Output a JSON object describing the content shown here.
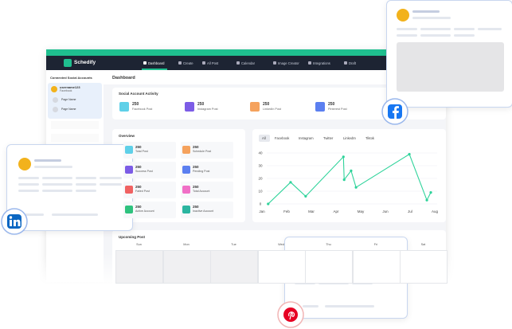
{
  "app": {
    "brand": "Schedify",
    "nav": [
      "Dashboard",
      "Create",
      "All Post",
      "Calendar",
      "Image Creator",
      "Integrations",
      "Draft"
    ],
    "sidebar": {
      "title": "Connected Social Accounts",
      "account": {
        "name": "username123",
        "platform": "Facebook"
      },
      "pages": [
        "Page Name",
        "Page Name"
      ]
    },
    "page_title": "Dashboard",
    "activity": {
      "title": "Social Account Activity",
      "items": [
        {
          "value": 250,
          "label": "Facebook Post",
          "color": "#5fd0e8"
        },
        {
          "value": 250,
          "label": "Instagram Post",
          "color": "#7c5ce6"
        },
        {
          "value": 250,
          "label": "LinkedIn Post",
          "color": "#f5a25d"
        },
        {
          "value": 250,
          "label": "Pinterest Post",
          "color": "#5b7ff0"
        }
      ]
    },
    "overview": {
      "title": "Overview",
      "items": [
        {
          "value": 250,
          "label": "Total Post",
          "color": "#5fd0e8"
        },
        {
          "value": 250,
          "label": "Schedule Post",
          "color": "#f5a25d"
        },
        {
          "value": 250,
          "label": "Success Post",
          "color": "#7c5ce6"
        },
        {
          "value": 250,
          "label": "Pending Post",
          "color": "#5b7ff0"
        },
        {
          "value": 250,
          "label": "Failed Post",
          "color": "#f06262"
        },
        {
          "value": 250,
          "label": "Total Account",
          "color": "#f06fc6"
        },
        {
          "value": 250,
          "label": "Active Account",
          "color": "#2ec27e"
        },
        {
          "value": 250,
          "label": "Inactive Account",
          "color": "#2bb5a0"
        }
      ]
    },
    "chart_tabs": [
      "All",
      "Facebook",
      "Instagram",
      "Twitter",
      "LinkedIn",
      "Tiktok"
    ],
    "upcoming": {
      "title": "Upcoming Post",
      "days": [
        "Sun",
        "Mon",
        "Tue",
        "Wed",
        "Thu",
        "Fri",
        "Sat"
      ]
    }
  },
  "chart_data": {
    "type": "line",
    "color": "#2ed39a",
    "x": [
      0.25,
      1.16,
      1.77,
      3.3,
      3.33,
      3.61,
      3.81,
      5.97,
      6.68,
      6.84
    ],
    "values": [
      0,
      17,
      6,
      37,
      19,
      26,
      13,
      39,
      3,
      9
    ],
    "xlim": [
      0,
      7
    ],
    "ylim": [
      0,
      40
    ],
    "xticks": [
      {
        "value": 0,
        "label": "Jan"
      },
      {
        "value": 1,
        "label": "Feb"
      },
      {
        "value": 2,
        "label": "Mar"
      },
      {
        "value": 3,
        "label": "Apr"
      },
      {
        "value": 4,
        "label": "May"
      },
      {
        "value": 5,
        "label": "Jun"
      },
      {
        "value": 6,
        "label": "Jul"
      },
      {
        "value": 7,
        "label": "Aug"
      }
    ],
    "yticks": [
      0,
      10,
      20,
      30,
      40
    ],
    "grid": true
  }
}
